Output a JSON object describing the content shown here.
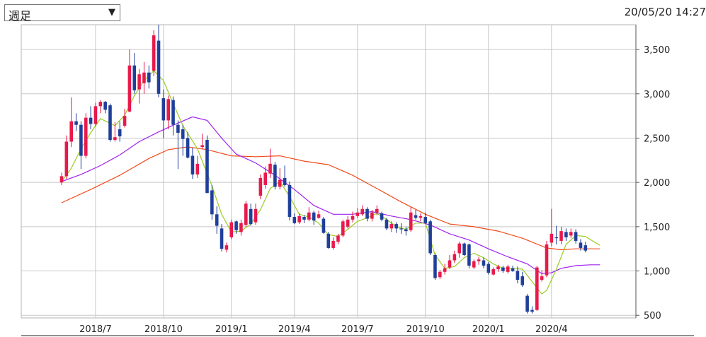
{
  "toolbar": {
    "period_selected": "週足"
  },
  "timestamp": "20/05/20 14:27",
  "chart_data": {
    "type": "candlestick",
    "ylim": [
      470,
      3780
    ],
    "y_ticks": [
      {
        "value": 3500,
        "label": "3,500"
      },
      {
        "value": 3000,
        "label": "3,000"
      },
      {
        "value": 2500,
        "label": "2,500"
      },
      {
        "value": 2000,
        "label": "2,000"
      },
      {
        "value": 1500,
        "label": "1,500"
      },
      {
        "value": 1000,
        "label": "1,000"
      },
      {
        "value": 500,
        "label": "500"
      }
    ],
    "x_ticks": [
      {
        "label": "2018/7",
        "index": 7
      },
      {
        "label": "2018/10",
        "index": 21
      },
      {
        "label": "2019/1",
        "index": 35
      },
      {
        "label": "2019/4",
        "index": 48
      },
      {
        "label": "2019/7",
        "index": 61
      },
      {
        "label": "2019/10",
        "index": 75
      },
      {
        "label": "2020/1",
        "index": 88
      },
      {
        "label": "2020/4",
        "index": 101
      }
    ],
    "colors": {
      "up": "#e8194b",
      "down": "#1f3f9a",
      "ma_short": "#99cc22",
      "ma_mid": "#a020f0",
      "ma_long": "#f04a1a",
      "grid": "#c7c7c7"
    },
    "candles": [
      {
        "o": 2000,
        "h": 2110,
        "l": 1970,
        "c": 2070
      },
      {
        "o": 2070,
        "h": 2530,
        "l": 2040,
        "c": 2460
      },
      {
        "o": 2460,
        "h": 2960,
        "l": 2400,
        "c": 2690
      },
      {
        "o": 2690,
        "h": 2780,
        "l": 2580,
        "c": 2650
      },
      {
        "o": 2650,
        "h": 2690,
        "l": 2150,
        "c": 2300
      },
      {
        "o": 2300,
        "h": 2780,
        "l": 2270,
        "c": 2730
      },
      {
        "o": 2730,
        "h": 2860,
        "l": 2600,
        "c": 2660
      },
      {
        "o": 2660,
        "h": 2900,
        "l": 2630,
        "c": 2860
      },
      {
        "o": 2860,
        "h": 2930,
        "l": 2780,
        "c": 2910
      },
      {
        "o": 2910,
        "h": 2920,
        "l": 2780,
        "c": 2820
      },
      {
        "o": 2870,
        "h": 2890,
        "l": 2460,
        "c": 2480
      },
      {
        "o": 2480,
        "h": 2680,
        "l": 2460,
        "c": 2510
      },
      {
        "o": 2600,
        "h": 2690,
        "l": 2460,
        "c": 2520
      },
      {
        "o": 2640,
        "h": 2830,
        "l": 2620,
        "c": 2750
      },
      {
        "o": 2800,
        "h": 3500,
        "l": 2790,
        "c": 3320
      },
      {
        "o": 3320,
        "h": 3460,
        "l": 3000,
        "c": 3040
      },
      {
        "o": 3050,
        "h": 3280,
        "l": 2890,
        "c": 3220
      },
      {
        "o": 3120,
        "h": 3360,
        "l": 3000,
        "c": 3240
      },
      {
        "o": 3240,
        "h": 3320,
        "l": 3060,
        "c": 3130
      },
      {
        "o": 3260,
        "h": 3720,
        "l": 3200,
        "c": 3660
      },
      {
        "o": 3600,
        "h": 3780,
        "l": 2960,
        "c": 3000
      },
      {
        "o": 2950,
        "h": 3050,
        "l": 2500,
        "c": 2700
      },
      {
        "o": 2700,
        "h": 2980,
        "l": 2600,
        "c": 2940
      },
      {
        "o": 2930,
        "h": 2970,
        "l": 2530,
        "c": 2650
      },
      {
        "o": 2650,
        "h": 2700,
        "l": 2150,
        "c": 2560
      },
      {
        "o": 2600,
        "h": 2650,
        "l": 2300,
        "c": 2490
      },
      {
        "o": 2500,
        "h": 2570,
        "l": 2270,
        "c": 2280
      },
      {
        "o": 2300,
        "h": 2390,
        "l": 2040,
        "c": 2090
      },
      {
        "o": 2090,
        "h": 2300,
        "l": 2050,
        "c": 2210
      },
      {
        "o": 2400,
        "h": 2550,
        "l": 2380,
        "c": 2420
      },
      {
        "o": 2480,
        "h": 2530,
        "l": 1880,
        "c": 1880
      },
      {
        "o": 1910,
        "h": 1970,
        "l": 1580,
        "c": 1640
      },
      {
        "o": 1640,
        "h": 1730,
        "l": 1420,
        "c": 1510
      },
      {
        "o": 1480,
        "h": 1530,
        "l": 1220,
        "c": 1250
      },
      {
        "o": 1240,
        "h": 1320,
        "l": 1210,
        "c": 1290
      },
      {
        "o": 1380,
        "h": 1580,
        "l": 1360,
        "c": 1550
      },
      {
        "o": 1560,
        "h": 1570,
        "l": 1420,
        "c": 1460
      },
      {
        "o": 1440,
        "h": 1580,
        "l": 1400,
        "c": 1540
      },
      {
        "o": 1520,
        "h": 1790,
        "l": 1500,
        "c": 1760
      },
      {
        "o": 1700,
        "h": 1760,
        "l": 1510,
        "c": 1530
      },
      {
        "o": 1550,
        "h": 1760,
        "l": 1520,
        "c": 1700
      },
      {
        "o": 1850,
        "h": 2090,
        "l": 1810,
        "c": 2050
      },
      {
        "o": 1970,
        "h": 2180,
        "l": 1930,
        "c": 2110
      },
      {
        "o": 2100,
        "h": 2380,
        "l": 2050,
        "c": 2210
      },
      {
        "o": 2200,
        "h": 2230,
        "l": 1920,
        "c": 1950
      },
      {
        "o": 1950,
        "h": 2160,
        "l": 1920,
        "c": 2030
      },
      {
        "o": 2050,
        "h": 2190,
        "l": 1950,
        "c": 1970
      },
      {
        "o": 1970,
        "h": 2010,
        "l": 1570,
        "c": 1610
      },
      {
        "o": 1610,
        "h": 1650,
        "l": 1530,
        "c": 1540
      },
      {
        "o": 1550,
        "h": 1650,
        "l": 1530,
        "c": 1620
      },
      {
        "o": 1610,
        "h": 1630,
        "l": 1540,
        "c": 1580
      },
      {
        "o": 1580,
        "h": 1720,
        "l": 1560,
        "c": 1660
      },
      {
        "o": 1660,
        "h": 1680,
        "l": 1520,
        "c": 1570
      },
      {
        "o": 1600,
        "h": 1680,
        "l": 1590,
        "c": 1640
      },
      {
        "o": 1590,
        "h": 1610,
        "l": 1420,
        "c": 1430
      },
      {
        "o": 1420,
        "h": 1440,
        "l": 1250,
        "c": 1260
      },
      {
        "o": 1260,
        "h": 1380,
        "l": 1240,
        "c": 1340
      },
      {
        "o": 1330,
        "h": 1420,
        "l": 1300,
        "c": 1400
      },
      {
        "o": 1400,
        "h": 1580,
        "l": 1380,
        "c": 1560
      },
      {
        "o": 1500,
        "h": 1620,
        "l": 1480,
        "c": 1580
      },
      {
        "o": 1580,
        "h": 1670,
        "l": 1550,
        "c": 1620
      },
      {
        "o": 1620,
        "h": 1710,
        "l": 1600,
        "c": 1660
      },
      {
        "o": 1640,
        "h": 1740,
        "l": 1620,
        "c": 1700
      },
      {
        "o": 1700,
        "h": 1720,
        "l": 1560,
        "c": 1590
      },
      {
        "o": 1590,
        "h": 1690,
        "l": 1560,
        "c": 1660
      },
      {
        "o": 1660,
        "h": 1740,
        "l": 1630,
        "c": 1700
      },
      {
        "o": 1650,
        "h": 1670,
        "l": 1560,
        "c": 1580
      },
      {
        "o": 1580,
        "h": 1600,
        "l": 1460,
        "c": 1480
      },
      {
        "o": 1480,
        "h": 1560,
        "l": 1440,
        "c": 1530
      },
      {
        "o": 1530,
        "h": 1550,
        "l": 1430,
        "c": 1480
      },
      {
        "o": 1480,
        "h": 1540,
        "l": 1420,
        "c": 1470
      },
      {
        "o": 1470,
        "h": 1500,
        "l": 1400,
        "c": 1450
      },
      {
        "o": 1460,
        "h": 1720,
        "l": 1440,
        "c": 1660
      },
      {
        "o": 1630,
        "h": 1690,
        "l": 1580,
        "c": 1600
      },
      {
        "o": 1600,
        "h": 1650,
        "l": 1560,
        "c": 1620
      },
      {
        "o": 1610,
        "h": 1660,
        "l": 1530,
        "c": 1540
      },
      {
        "o": 1560,
        "h": 1580,
        "l": 1180,
        "c": 1200
      },
      {
        "o": 1180,
        "h": 1200,
        "l": 900,
        "c": 920
      },
      {
        "o": 930,
        "h": 1010,
        "l": 910,
        "c": 990
      },
      {
        "o": 990,
        "h": 1080,
        "l": 960,
        "c": 1030
      },
      {
        "o": 1040,
        "h": 1180,
        "l": 1020,
        "c": 1120
      },
      {
        "o": 1120,
        "h": 1230,
        "l": 1090,
        "c": 1190
      },
      {
        "o": 1200,
        "h": 1330,
        "l": 1150,
        "c": 1310
      },
      {
        "o": 1310,
        "h": 1320,
        "l": 1170,
        "c": 1180
      },
      {
        "o": 1300,
        "h": 1310,
        "l": 1030,
        "c": 1060
      },
      {
        "o": 1040,
        "h": 1130,
        "l": 1020,
        "c": 1110
      },
      {
        "o": 1110,
        "h": 1160,
        "l": 1070,
        "c": 1130
      },
      {
        "o": 1120,
        "h": 1150,
        "l": 1030,
        "c": 1060
      },
      {
        "o": 1080,
        "h": 1100,
        "l": 960,
        "c": 980
      },
      {
        "o": 960,
        "h": 1040,
        "l": 950,
        "c": 1020
      },
      {
        "o": 1020,
        "h": 1070,
        "l": 990,
        "c": 1050
      },
      {
        "o": 1040,
        "h": 1060,
        "l": 980,
        "c": 1000
      },
      {
        "o": 990,
        "h": 1070,
        "l": 970,
        "c": 1050
      },
      {
        "o": 1030,
        "h": 1060,
        "l": 990,
        "c": 1000
      },
      {
        "o": 1000,
        "h": 1050,
        "l": 860,
        "c": 900
      },
      {
        "o": 940,
        "h": 990,
        "l": 820,
        "c": 840
      },
      {
        "o": 720,
        "h": 740,
        "l": 520,
        "c": 540
      },
      {
        "o": 560,
        "h": 600,
        "l": 520,
        "c": 540
      },
      {
        "o": 560,
        "h": 1060,
        "l": 550,
        "c": 1040
      },
      {
        "o": 900,
        "h": 1010,
        "l": 880,
        "c": 940
      },
      {
        "o": 950,
        "h": 1340,
        "l": 930,
        "c": 1300
      },
      {
        "o": 1320,
        "h": 1700,
        "l": 1280,
        "c": 1420
      },
      {
        "o": 1380,
        "h": 1510,
        "l": 1300,
        "c": 1370
      },
      {
        "o": 1340,
        "h": 1500,
        "l": 1300,
        "c": 1450
      },
      {
        "o": 1440,
        "h": 1480,
        "l": 1340,
        "c": 1380
      },
      {
        "o": 1400,
        "h": 1480,
        "l": 1370,
        "c": 1440
      },
      {
        "o": 1440,
        "h": 1470,
        "l": 1310,
        "c": 1340
      },
      {
        "o": 1320,
        "h": 1360,
        "l": 1230,
        "c": 1260
      },
      {
        "o": 1290,
        "h": 1330,
        "l": 1210,
        "c": 1230
      }
    ],
    "ma_short": [
      {
        "i": 0,
        "v": 2010
      },
      {
        "i": 2,
        "v": 2160
      },
      {
        "i": 4,
        "v": 2380
      },
      {
        "i": 6,
        "v": 2560
      },
      {
        "i": 8,
        "v": 2720
      },
      {
        "i": 11,
        "v": 2640
      },
      {
        "i": 13,
        "v": 2760
      },
      {
        "i": 15,
        "v": 2980
      },
      {
        "i": 17,
        "v": 3150
      },
      {
        "i": 19,
        "v": 3260
      },
      {
        "i": 21,
        "v": 3150
      },
      {
        "i": 23,
        "v": 2890
      },
      {
        "i": 25,
        "v": 2640
      },
      {
        "i": 28,
        "v": 2380
      },
      {
        "i": 31,
        "v": 1960
      },
      {
        "i": 33,
        "v": 1640
      },
      {
        "i": 35,
        "v": 1440
      },
      {
        "i": 37,
        "v": 1450
      },
      {
        "i": 39,
        "v": 1530
      },
      {
        "i": 41,
        "v": 1690
      },
      {
        "i": 43,
        "v": 1930
      },
      {
        "i": 45,
        "v": 2010
      },
      {
        "i": 47,
        "v": 1840
      },
      {
        "i": 49,
        "v": 1640
      },
      {
        "i": 51,
        "v": 1610
      },
      {
        "i": 53,
        "v": 1540
      },
      {
        "i": 55,
        "v": 1410
      },
      {
        "i": 57,
        "v": 1390
      },
      {
        "i": 59,
        "v": 1470
      },
      {
        "i": 61,
        "v": 1560
      },
      {
        "i": 63,
        "v": 1600
      },
      {
        "i": 65,
        "v": 1650
      },
      {
        "i": 67,
        "v": 1580
      },
      {
        "i": 69,
        "v": 1500
      },
      {
        "i": 71,
        "v": 1470
      },
      {
        "i": 73,
        "v": 1540
      },
      {
        "i": 75,
        "v": 1540
      },
      {
        "i": 77,
        "v": 1180
      },
      {
        "i": 79,
        "v": 1030
      },
      {
        "i": 81,
        "v": 1050
      },
      {
        "i": 83,
        "v": 1150
      },
      {
        "i": 85,
        "v": 1200
      },
      {
        "i": 87,
        "v": 1150
      },
      {
        "i": 89,
        "v": 1080
      },
      {
        "i": 91,
        "v": 1030
      },
      {
        "i": 93,
        "v": 1030
      },
      {
        "i": 95,
        "v": 1020
      },
      {
        "i": 97,
        "v": 880
      },
      {
        "i": 99,
        "v": 740
      },
      {
        "i": 100,
        "v": 780
      },
      {
        "i": 102,
        "v": 1020
      },
      {
        "i": 104,
        "v": 1300
      },
      {
        "i": 106,
        "v": 1400
      },
      {
        "i": 108,
        "v": 1390
      },
      {
        "i": 110,
        "v": 1320
      },
      {
        "i": 111,
        "v": 1290
      }
    ],
    "ma_mid": [
      {
        "i": 0,
        "v": 2010
      },
      {
        "i": 4,
        "v": 2090
      },
      {
        "i": 8,
        "v": 2190
      },
      {
        "i": 12,
        "v": 2310
      },
      {
        "i": 16,
        "v": 2460
      },
      {
        "i": 20,
        "v": 2570
      },
      {
        "i": 24,
        "v": 2670
      },
      {
        "i": 27,
        "v": 2740
      },
      {
        "i": 30,
        "v": 2700
      },
      {
        "i": 33,
        "v": 2500
      },
      {
        "i": 36,
        "v": 2320
      },
      {
        "i": 40,
        "v": 2220
      },
      {
        "i": 44,
        "v": 2080
      },
      {
        "i": 48,
        "v": 1920
      },
      {
        "i": 52,
        "v": 1740
      },
      {
        "i": 56,
        "v": 1640
      },
      {
        "i": 60,
        "v": 1640
      },
      {
        "i": 64,
        "v": 1670
      },
      {
        "i": 68,
        "v": 1620
      },
      {
        "i": 72,
        "v": 1580
      },
      {
        "i": 76,
        "v": 1520
      },
      {
        "i": 80,
        "v": 1420
      },
      {
        "i": 84,
        "v": 1350
      },
      {
        "i": 88,
        "v": 1250
      },
      {
        "i": 92,
        "v": 1160
      },
      {
        "i": 96,
        "v": 1080
      },
      {
        "i": 99,
        "v": 970
      },
      {
        "i": 101,
        "v": 980
      },
      {
        "i": 103,
        "v": 1030
      },
      {
        "i": 106,
        "v": 1060
      },
      {
        "i": 109,
        "v": 1070
      },
      {
        "i": 111,
        "v": 1070
      }
    ],
    "ma_long": [
      {
        "i": 0,
        "v": 1770
      },
      {
        "i": 6,
        "v": 1920
      },
      {
        "i": 12,
        "v": 2080
      },
      {
        "i": 18,
        "v": 2270
      },
      {
        "i": 22,
        "v": 2370
      },
      {
        "i": 26,
        "v": 2400
      },
      {
        "i": 30,
        "v": 2370
      },
      {
        "i": 35,
        "v": 2300
      },
      {
        "i": 40,
        "v": 2290
      },
      {
        "i": 45,
        "v": 2300
      },
      {
        "i": 50,
        "v": 2240
      },
      {
        "i": 55,
        "v": 2200
      },
      {
        "i": 60,
        "v": 2080
      },
      {
        "i": 65,
        "v": 1930
      },
      {
        "i": 70,
        "v": 1780
      },
      {
        "i": 75,
        "v": 1640
      },
      {
        "i": 80,
        "v": 1530
      },
      {
        "i": 85,
        "v": 1500
      },
      {
        "i": 90,
        "v": 1450
      },
      {
        "i": 95,
        "v": 1370
      },
      {
        "i": 100,
        "v": 1260
      },
      {
        "i": 103,
        "v": 1240
      },
      {
        "i": 106,
        "v": 1250
      },
      {
        "i": 109,
        "v": 1250
      },
      {
        "i": 111,
        "v": 1250
      }
    ]
  }
}
